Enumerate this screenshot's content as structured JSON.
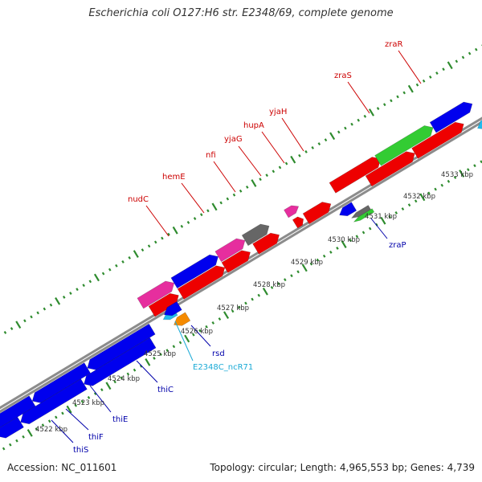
{
  "title": "Escherichia coli O127:H6 str. E2348/69, complete genome",
  "footer": {
    "accession": "Accession: NC_011601",
    "topology": "Topology: circular; Length: 4,965,553 bp; Genes: 4,739"
  },
  "colors": {
    "backbone": "#8c8c8c",
    "ticks": "#2e8b2e",
    "label_forward": "#cc0000",
    "label_reverse": "#0000aa",
    "label_ncrna": "#1aaad6",
    "red": "#ee0000",
    "blue": "#0000ee",
    "magenta": "#e62e9e",
    "green": "#33cc33",
    "gray": "#666666",
    "orange": "#f58a00",
    "cyan": "#22bbee"
  },
  "scale_labels": [
    "4522 kbp",
    "4523 kbp",
    "4524 kbp",
    "4525 kbp",
    "4526 kbp",
    "4527 kbp",
    "4528 kbp",
    "4529 kbp",
    "4530 kbp",
    "4531 kbp",
    "4532 kbp",
    "4533 kbp"
  ],
  "gene_labels": {
    "forward": [
      "nudC",
      "hemE",
      "nfi",
      "yjaG",
      "hupA",
      "yjaH",
      "zraS",
      "zraR"
    ],
    "reverse": [
      "thiS",
      "thiF",
      "thiE",
      "thiC",
      "rsd",
      "zraP"
    ],
    "ncrna": [
      "E2348C_ncR71"
    ]
  }
}
